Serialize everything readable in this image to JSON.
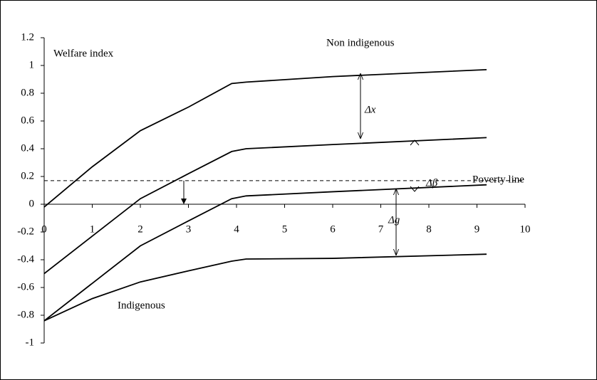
{
  "chart_data": {
    "type": "line",
    "y_label": "Welfare index",
    "x": [
      0,
      1,
      2,
      3,
      3.9,
      4.2,
      6,
      9.2
    ],
    "series": [
      {
        "name": "Non indigenous",
        "color": "#000000",
        "values": [
          -0.02,
          0.27,
          0.53,
          0.7,
          0.87,
          0.88,
          0.92,
          0.97
        ]
      },
      {
        "color": "#000000",
        "values": [
          -0.5,
          -0.23,
          0.04,
          0.22,
          0.38,
          0.4,
          0.43,
          0.48
        ]
      },
      {
        "color": "#000000",
        "values": [
          -0.84,
          -0.57,
          -0.3,
          -0.12,
          0.04,
          0.06,
          0.09,
          0.14
        ]
      },
      {
        "name": "Indigenous",
        "color": "#000000",
        "values": [
          -0.84,
          -0.68,
          -0.56,
          -0.48,
          -0.41,
          -0.395,
          -0.39,
          -0.36
        ]
      }
    ],
    "reference_line": {
      "label": "Poverty line",
      "value": 0.17
    },
    "annotations": [
      "Δx",
      "Δβ",
      "Δg"
    ],
    "xlim": [
      0,
      10
    ],
    "xticks": [
      0,
      1,
      2,
      3,
      4,
      5,
      6,
      7,
      8,
      9,
      10
    ],
    "ylim": [
      -1,
      1.2
    ],
    "yticks": [
      -1,
      -0.8,
      -0.6,
      -0.4,
      -0.2,
      0,
      0.2,
      0.4,
      0.6,
      0.8,
      1,
      1.2
    ]
  }
}
